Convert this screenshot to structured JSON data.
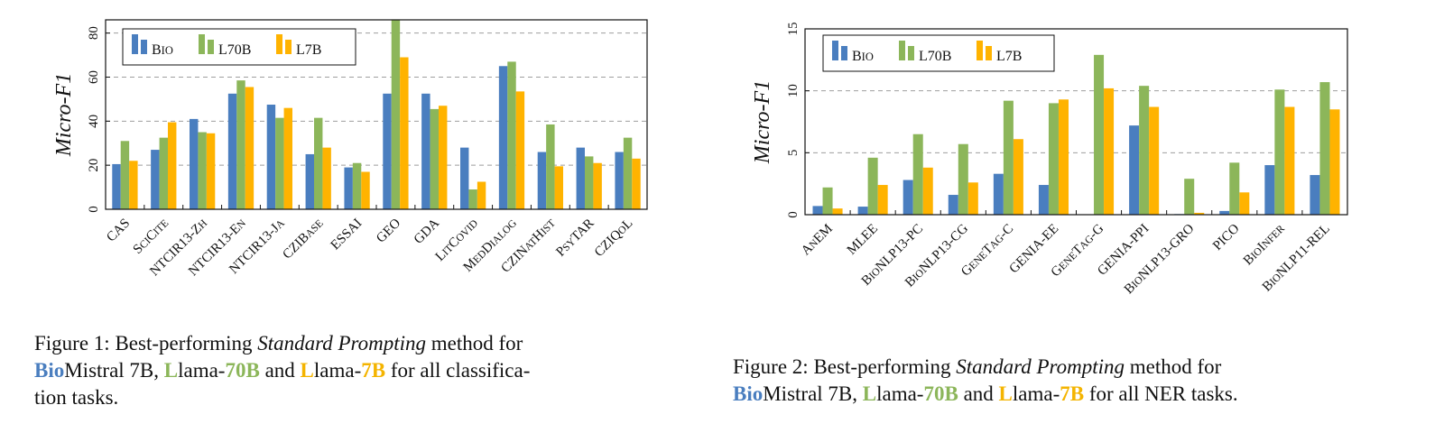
{
  "colors": {
    "bio": "#4a7ebf",
    "l70b": "#8cb65a",
    "l7b": "#ffb300",
    "grid": "#9e9e9e"
  },
  "chart_data": [
    {
      "type": "bar",
      "ylabel": "Micro-F1",
      "ylim": [
        0,
        86
      ],
      "yticks": [
        0,
        20,
        40,
        60,
        80
      ],
      "grid": "horizontal dashed",
      "legend": "top-left",
      "categories": [
        "CAS",
        "SciCite",
        "NTCIR13-Zh",
        "NTCIR13-En",
        "NTCIR13-Ja",
        "CZIBase",
        "ESSAI",
        "GEO",
        "GDA",
        "LitCovid",
        "MedDialog",
        "CZINatHist",
        "PsyTAR",
        "CZIQoL"
      ],
      "series": [
        {
          "name": "Bio",
          "values": [
            20.5,
            27,
            41,
            52.5,
            47.5,
            25,
            19,
            52.5,
            52.5,
            28,
            65,
            26,
            28,
            26
          ]
        },
        {
          "name": "L70B",
          "values": [
            31,
            32.5,
            35,
            58.5,
            41.5,
            41.5,
            21,
            86,
            45.5,
            9,
            67,
            38.5,
            24,
            32.5
          ]
        },
        {
          "name": "L7B",
          "values": [
            22,
            39.5,
            34.5,
            55.5,
            46,
            28,
            17,
            69,
            47,
            12.5,
            53.5,
            19.5,
            21,
            23
          ]
        }
      ]
    },
    {
      "type": "bar",
      "ylabel": "Micro-F1",
      "ylim": [
        0,
        15
      ],
      "yticks": [
        0,
        5,
        10,
        15
      ],
      "grid": "horizontal dashed",
      "legend": "top-left",
      "categories": [
        "AnEM",
        "MLEE",
        "BioNLP13-PC",
        "BioNLP13-CG",
        "GeneTag-C",
        "GENIA-EE",
        "GeneTag-G",
        "GENIA-PPI",
        "BioNLP13-GRO",
        "PICO",
        "BioInfer",
        "BioNLP11-REL"
      ],
      "series": [
        {
          "name": "Bio",
          "values": [
            0.7,
            0.65,
            2.8,
            1.6,
            3.3,
            2.4,
            0,
            7.2,
            0.05,
            0.3,
            4.0,
            3.2
          ]
        },
        {
          "name": "L70B",
          "values": [
            2.2,
            4.6,
            6.5,
            5.7,
            9.2,
            9.0,
            12.9,
            10.4,
            2.9,
            4.2,
            10.1,
            10.7
          ]
        },
        {
          "name": "L7B",
          "values": [
            0.5,
            2.4,
            3.8,
            2.6,
            6.1,
            9.3,
            10.2,
            8.7,
            0.15,
            1.8,
            8.7,
            8.5
          ]
        }
      ]
    }
  ],
  "legend_labels": {
    "bio": "Bio",
    "l70b": "L70B",
    "l7b": "L7B"
  },
  "captions": [
    {
      "prefix": "Figure 1: Best-performing ",
      "method": "Standard Prompting",
      "middle1": " method for ",
      "bio_b": "Bio",
      "bio_rest": "Mistral 7B, ",
      "l70_l": "L",
      "l70_mid": "lama-",
      "l70_70b": "70B",
      "and": " and ",
      "l7_l": "L",
      "l7_mid": "lama-",
      "l7_7b": "7B",
      "suffix1": " for all classifica-",
      "suffix2": "tion tasks."
    },
    {
      "prefix": "Figure 2: Best-performing ",
      "method": "Standard Prompting",
      "middle1": " method for ",
      "bio_b": "Bio",
      "bio_rest": "Mistral 7B, ",
      "l70_l": "L",
      "l70_mid": "lama-",
      "l70_70b": "70B",
      "and": " and ",
      "l7_l": "L",
      "l7_mid": "lama-",
      "l7_7b": "7B",
      "suffix1": " for all NER tasks."
    }
  ]
}
